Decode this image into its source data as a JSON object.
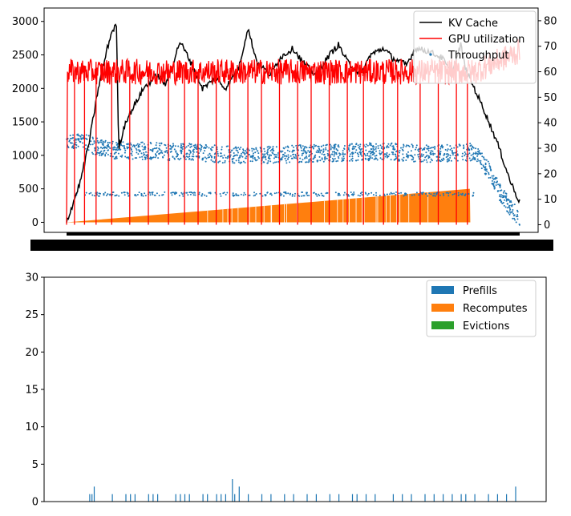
{
  "chart_data": [
    {
      "type": "line",
      "title": "",
      "xlabel": "",
      "ylabel": "",
      "ylim": [
        -150,
        3200
      ],
      "y2lim": [
        -3,
        85
      ],
      "yticks": [
        0,
        500,
        1000,
        1500,
        2000,
        2500,
        3000
      ],
      "y2ticks": [
        0,
        10,
        20,
        30,
        40,
        50,
        60,
        70,
        80
      ],
      "x_tick_labels_note": "dense overlapping tick labels (illegible)",
      "grid": false,
      "legend_position": "top-right",
      "legend": [
        {
          "label": "KV Cache",
          "color": "#000000",
          "marker": "line"
        },
        {
          "label": "GPU utilization",
          "color": "#ff0000",
          "marker": "line"
        },
        {
          "label": "Throughput",
          "color": "#1f77b4",
          "marker": "dot"
        }
      ],
      "series": [
        {
          "name": "KV Cache",
          "axis": "left",
          "color": "#000000",
          "x": [
            0,
            0.01,
            0.03,
            0.05,
            0.07,
            0.09,
            0.1,
            0.11,
            0.115,
            0.13,
            0.15,
            0.17,
            0.2,
            0.22,
            0.25,
            0.27,
            0.28,
            0.3,
            0.33,
            0.35,
            0.38,
            0.4,
            0.42,
            0.45,
            0.47,
            0.5,
            0.52,
            0.55,
            0.58,
            0.6,
            0.62,
            0.65,
            0.67,
            0.7,
            0.72,
            0.75,
            0.77,
            0.8,
            0.83,
            0.85,
            0.87,
            0.88,
            0.9,
            0.92,
            0.95,
            0.97,
            0.98,
            1.0
          ],
          "y": [
            0,
            200,
            600,
            1200,
            2000,
            2600,
            2850,
            2950,
            1100,
            1500,
            1750,
            2000,
            2200,
            2050,
            2700,
            2450,
            2300,
            2000,
            2150,
            2000,
            2300,
            2900,
            2400,
            2200,
            2450,
            2600,
            2400,
            2200,
            2500,
            2650,
            2400,
            2200,
            2500,
            2600,
            2450,
            2350,
            2600,
            2550,
            2450,
            2200,
            2650,
            2300,
            2000,
            1700,
            1200,
            800,
            600,
            300
          ]
        },
        {
          "name": "GPU utilization",
          "axis": "right",
          "color": "#ff0000",
          "baseline": 60,
          "start_x": 0.002,
          "end_level": 68,
          "dips_x": [
            0.018,
            0.04,
            0.065,
            0.1,
            0.14,
            0.18,
            0.225,
            0.26,
            0.29,
            0.33,
            0.36,
            0.4,
            0.43,
            0.47,
            0.51,
            0.54,
            0.58,
            0.62,
            0.655,
            0.7,
            0.73,
            0.78,
            0.82,
            0.86,
            0.885
          ]
        },
        {
          "name": "Throughput",
          "axis": "left",
          "color": "#1f77b4",
          "type": "scatter",
          "band_main_x": [
            0,
            0.1,
            0.2,
            0.3,
            0.4,
            0.5,
            0.6,
            0.7,
            0.8,
            0.9,
            0.93,
            0.96,
            1.0
          ],
          "band_main_y": [
            1250,
            1080,
            1060,
            1040,
            990,
            1020,
            1040,
            1060,
            1020,
            1050,
            800,
            400,
            50
          ],
          "band_low_y": 420
        },
        {
          "name": "",
          "axis": "left",
          "color": "#ff7f0e",
          "type": "area",
          "x": [
            0,
            0.89,
            0.891,
            1.0
          ],
          "y": [
            0,
            500,
            0,
            0
          ]
        }
      ]
    },
    {
      "type": "bar",
      "title": "",
      "xlabel": "",
      "ylabel": "",
      "ylim": [
        0,
        30
      ],
      "yticks": [
        0,
        5,
        10,
        15,
        20,
        25,
        30
      ],
      "grid": false,
      "legend_position": "top-right",
      "legend": [
        {
          "label": "Prefills",
          "color": "#1f77b4"
        },
        {
          "label": "Recomputes",
          "color": "#ff7f0e"
        },
        {
          "label": "Evictions",
          "color": "#2ca02c"
        }
      ],
      "series": [
        {
          "name": "Prefills",
          "color": "#1f77b4",
          "x": [
            0.05,
            0.055,
            0.06,
            0.1,
            0.13,
            0.14,
            0.15,
            0.18,
            0.19,
            0.2,
            0.24,
            0.25,
            0.26,
            0.27,
            0.3,
            0.31,
            0.33,
            0.34,
            0.35,
            0.365,
            0.37,
            0.38,
            0.4,
            0.43,
            0.45,
            0.48,
            0.5,
            0.53,
            0.55,
            0.58,
            0.6,
            0.63,
            0.64,
            0.66,
            0.68,
            0.72,
            0.74,
            0.76,
            0.79,
            0.81,
            0.83,
            0.85,
            0.87,
            0.88,
            0.9,
            0.93,
            0.95,
            0.97,
            0.99
          ],
          "values": [
            1,
            1,
            2,
            1,
            1,
            1,
            1,
            1,
            1,
            1,
            1,
            1,
            1,
            1,
            1,
            1,
            1,
            1,
            1,
            3,
            1,
            2,
            1,
            1,
            1,
            1,
            1,
            1,
            1,
            1,
            1,
            1,
            1,
            1,
            1,
            1,
            1,
            1,
            1,
            1,
            1,
            1,
            1,
            1,
            1,
            1,
            1,
            1,
            2
          ]
        },
        {
          "name": "Recomputes",
          "color": "#ff7f0e",
          "x": [],
          "values": []
        },
        {
          "name": "Evictions",
          "color": "#2ca02c",
          "x": [],
          "values": []
        }
      ]
    }
  ]
}
